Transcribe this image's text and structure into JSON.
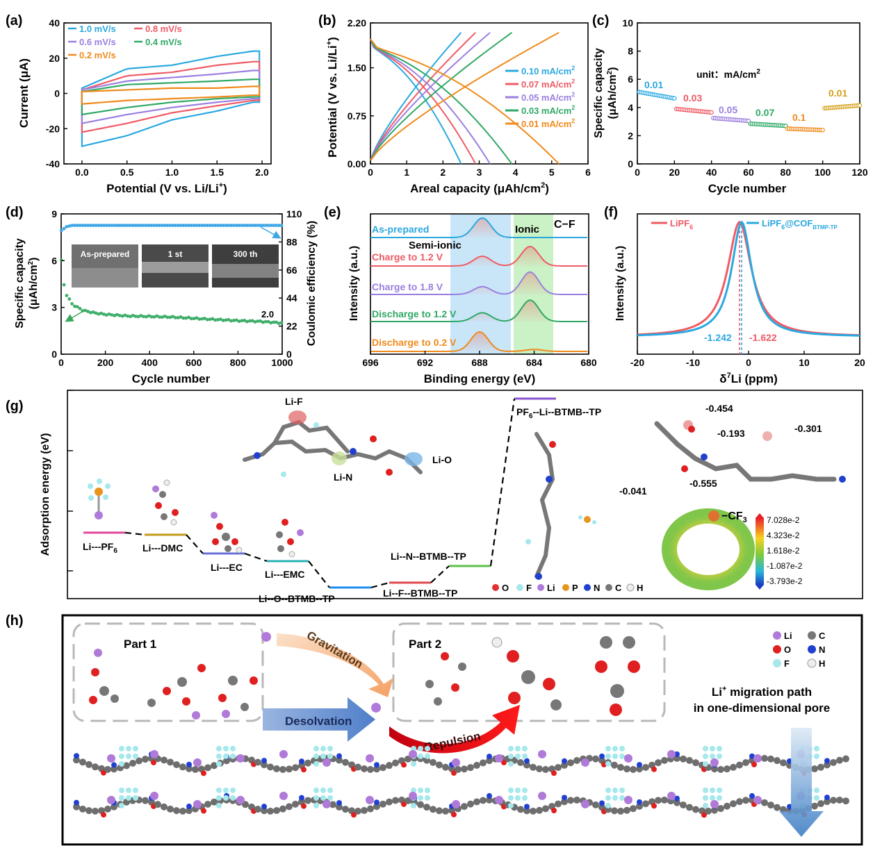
{
  "panels": {
    "a": {
      "label": "(a)",
      "xlabel": "Potential (V vs. Li/Li",
      "xlabel_sup": "+",
      "xlabel_end": ")",
      "ylabel": "Current (μA)",
      "legend": [
        "1.0 mV/s",
        "0.8 mV/s",
        "0.6 mV/s",
        "0.4 mV/s",
        "0.2 mV/s"
      ],
      "xticks": [
        "0.0",
        "0.5",
        "1.0",
        "1.5",
        "2.0"
      ],
      "yticks": [
        "40",
        "20",
        "0",
        "-20",
        "-40"
      ]
    },
    "b": {
      "label": "(b)",
      "xlabel": "Areal capacity (μAh/cm",
      "xlabel_sup": "2",
      "xlabel_end": ")",
      "ylabel": "Potential (V vs. Li/Li",
      "ylabel_sup": "+",
      "ylabel_end": ")",
      "legend": [
        "0.10 mA/cm",
        "0.07 mA/cm",
        "0.05 mA/cm",
        "0.03 mA/cm",
        "0.01 mA/cm"
      ],
      "legend_sup": "2",
      "xticks": [
        "0",
        "1",
        "2",
        "3",
        "4",
        "5",
        "6"
      ],
      "yticks": [
        "2.20",
        "1.50",
        "0.75",
        "0.00"
      ]
    },
    "c": {
      "label": "(c)",
      "xlabel": "Cycle number",
      "ylabel": "Specific capacity",
      "ylabel2": "(μAh/cm",
      "ylabel2_sup": "2",
      "ylabel2_end": ")",
      "unit": "unit：mA/cm",
      "unit_sup": "2",
      "rate_labels": [
        "0.01",
        "0.03",
        "0.05",
        "0.07",
        "0.1",
        "0.01"
      ],
      "xticks": [
        "0",
        "20",
        "40",
        "60",
        "80",
        "100",
        "120"
      ],
      "yticks": [
        "10",
        "8",
        "6",
        "4",
        "2",
        "0"
      ]
    },
    "d": {
      "label": "(d)",
      "xlabel": "Cycle number",
      "ylabel": "Specific capacity",
      "ylabel2": "(μAh/cm",
      "ylabel2_sup": "2",
      "ylabel2_end": ")",
      "ylabel_right": "Coulomic efficiency (%)",
      "insets": [
        "As-prepared",
        "1 st",
        "300 th"
      ],
      "end_label": "2.0",
      "xticks": [
        "0",
        "200",
        "400",
        "600",
        "800",
        "1000"
      ],
      "yticks": [
        "9",
        "6",
        "3",
        "0"
      ],
      "yticks_right": [
        "110",
        "88",
        "66",
        "44",
        "22",
        "0"
      ]
    },
    "e": {
      "label": "(e)",
      "xlabel": "Binding energy (eV)",
      "ylabel": "Intensity (a.u.)",
      "regions": [
        "Semi-ionic",
        "Ionic",
        "C−F"
      ],
      "spectra": [
        "As-prepared",
        "Charge to 1.2 V",
        "Charge to 1.8 V",
        "Discharge to 1.2 V",
        "Discharge to 0.2 V"
      ],
      "xticks": [
        "696",
        "692",
        "688",
        "684",
        "680"
      ]
    },
    "f": {
      "label": "(f)",
      "xlabel": "δ",
      "xlabel_sup": "7",
      "xlabel_end": "Li (ppm)",
      "ylabel": "Intensity (a.u.)",
      "legend1": "LiPF",
      "legend1_sub": "6",
      "legend2": "LiPF",
      "legend2_sub": "6",
      "legend2_end": "@COF",
      "legend2_sub2": "BTMP-TP",
      "peak1": "-1.242",
      "peak2": "-1.622",
      "xticks": [
        "-20",
        "-10",
        "0",
        "10",
        "20"
      ]
    },
    "g": {
      "label": "(g)",
      "ylabel": "Adsorption energy (eV)",
      "levels": [
        "Li---PF",
        "Li---DMC",
        "Li---EC",
        "Li---EMC",
        "Li--O--BTMB--TP",
        "Li--F--BTMB--TP",
        "Li--N--BTMB--TP",
        "PF"
      ],
      "level_sub": "6",
      "level_pf_end": "--Li--BTMB--TP",
      "bond_labels": [
        "Li-F",
        "Li-N",
        "Li-O"
      ],
      "charges": [
        "-0.454",
        "-0.193",
        "-0.301",
        "-0.041",
        "-0.555"
      ],
      "cf3": "−CF",
      "cf3_sub": "3",
      "colorbar": [
        "7.028e-2",
        "4.323e-2",
        "1.618e-2",
        "-1.087e-2",
        "-3.793e-2"
      ],
      "atoms": [
        "O",
        "F",
        "Li",
        "P",
        "N",
        "C",
        "H"
      ]
    },
    "h": {
      "label": "(h)",
      "part1": "Part 1",
      "part2": "Part 2",
      "arrows": [
        "Gravitation",
        "Desolvation",
        "Repulsion"
      ],
      "migration1": "Li",
      "migration_sup": "+",
      "migration1_end": " migration path",
      "migration2": "in one-dimensional pore",
      "atoms": [
        "Li",
        "C",
        "O",
        "N",
        "F",
        "H"
      ]
    }
  },
  "colors": {
    "c1": "#29a8e0",
    "c2": "#ef5a64",
    "c3": "#9b7fe0",
    "c4": "#2fa865",
    "c5": "#f08a1a",
    "c_green": "#3aa85a",
    "c_blue": "#3fa7e6"
  },
  "chart_data": [
    {
      "panel": "a",
      "type": "line",
      "xlabel": "Potential (V vs. Li/Li+)",
      "ylabel": "Current (μA)",
      "xlim": [
        -0.2,
        2.1
      ],
      "ylim": [
        -40,
        40
      ],
      "series": [
        {
          "name": "1.0 mV/s",
          "x": [
            0,
            0.5,
            1.0,
            1.5,
            1.9
          ],
          "y_anodic": [
            3,
            14,
            16,
            21,
            24
          ],
          "y_cathodic": [
            -30,
            -24,
            -15,
            -10,
            -5
          ]
        },
        {
          "name": "0.8 mV/s",
          "x": [
            0,
            0.5,
            1.0,
            1.5,
            1.9
          ],
          "y_anodic": [
            2,
            10,
            12,
            16,
            18
          ],
          "y_cathodic": [
            -22,
            -17,
            -11,
            -7,
            -4
          ]
        },
        {
          "name": "0.6 mV/s",
          "x": [
            0,
            0.5,
            1.0,
            1.5,
            1.9
          ],
          "y_anodic": [
            2,
            7,
            9,
            11,
            13
          ],
          "y_cathodic": [
            -17,
            -12,
            -8,
            -5,
            -3
          ]
        },
        {
          "name": "0.4 mV/s",
          "x": [
            0,
            0.5,
            1.0,
            1.5,
            1.9
          ],
          "y_anodic": [
            1,
            5,
            6,
            7,
            8
          ],
          "y_cathodic": [
            -12,
            -8,
            -5,
            -3,
            -2
          ]
        },
        {
          "name": "0.2 mV/s",
          "x": [
            0,
            0.5,
            1.0,
            1.5,
            1.9
          ],
          "y_anodic": [
            1,
            2,
            3,
            3,
            4
          ],
          "y_cathodic": [
            -6,
            -4,
            -3,
            -2,
            -1
          ]
        }
      ]
    },
    {
      "panel": "b",
      "type": "line",
      "xlabel": "Areal capacity (μAh/cm2)",
      "ylabel": "Potential (V vs. Li/Li+)",
      "xlim": [
        0,
        6
      ],
      "ylim": [
        0,
        2.2
      ],
      "series": [
        {
          "name": "0.10 mA/cm2",
          "capacity": 2.5
        },
        {
          "name": "0.07 mA/cm2",
          "capacity": 2.9
        },
        {
          "name": "0.05 mA/cm2",
          "capacity": 3.3
        },
        {
          "name": "0.03 mA/cm2",
          "capacity": 3.9
        },
        {
          "name": "0.01 mA/cm2",
          "capacity": 5.2
        }
      ]
    },
    {
      "panel": "c",
      "type": "scatter",
      "xlabel": "Cycle number",
      "ylabel": "Specific capacity (μAh/cm2)",
      "xlim": [
        0,
        120
      ],
      "ylim": [
        0,
        10
      ],
      "segments": [
        {
          "rate": "0.01",
          "cycles": [
            1,
            20
          ],
          "y": [
            5.1,
            4.65
          ]
        },
        {
          "rate": "0.03",
          "cycles": [
            21,
            40
          ],
          "y": [
            3.9,
            3.65
          ]
        },
        {
          "rate": "0.05",
          "cycles": [
            41,
            60
          ],
          "y": [
            3.25,
            3.05
          ]
        },
        {
          "rate": "0.07",
          "cycles": [
            61,
            80
          ],
          "y": [
            2.85,
            2.7
          ]
        },
        {
          "rate": "0.1",
          "cycles": [
            81,
            100
          ],
          "y": [
            2.5,
            2.4
          ]
        },
        {
          "rate": "0.01",
          "cycles": [
            101,
            120
          ],
          "y": [
            3.95,
            4.15
          ]
        }
      ]
    },
    {
      "panel": "d",
      "type": "scatter",
      "xlabel": "Cycle number",
      "ylabel": "Specific capacity (μAh/cm2)",
      "xlim": [
        0,
        1000
      ],
      "ylim": [
        0,
        9
      ],
      "y2lim": [
        0,
        110
      ],
      "capacity": {
        "x": [
          1,
          10,
          25,
          50,
          100,
          150,
          200,
          300,
          400,
          500,
          600,
          700,
          800,
          900,
          1000
        ],
        "y": [
          6.0,
          4.6,
          3.8,
          3.2,
          2.8,
          2.65,
          2.55,
          2.45,
          2.42,
          2.38,
          2.3,
          2.22,
          2.15,
          2.1,
          2.0
        ]
      },
      "efficiency": {
        "x": [
          1,
          25,
          50,
          100,
          200,
          400,
          600,
          800,
          1000
        ],
        "y": [
          97,
          100,
          101,
          101,
          101,
          101,
          101,
          101,
          101
        ]
      }
    },
    {
      "panel": "e",
      "type": "line",
      "xlabel": "Binding energy (eV)",
      "ylabel": "Intensity (a.u.)",
      "xlim": [
        696,
        680
      ],
      "series": [
        {
          "name": "As-prepared",
          "peaks": [
            [
              687.8,
              1.0
            ]
          ]
        },
        {
          "name": "Charge to 1.2 V",
          "peaks": [
            [
              687.8,
              0.5
            ],
            [
              684.3,
              1.0
            ]
          ]
        },
        {
          "name": "Charge to 1.8 V",
          "peaks": [
            [
              687.8,
              0.4
            ],
            [
              684.3,
              1.15
            ]
          ]
        },
        {
          "name": "Discharge to 1.2 V",
          "peaks": [
            [
              687.8,
              0.45
            ],
            [
              684.3,
              1.1
            ]
          ]
        },
        {
          "name": "Discharge to 0.2 V",
          "peaks": [
            [
              688.0,
              1.0
            ],
            [
              684.0,
              0.1
            ]
          ]
        }
      ]
    },
    {
      "panel": "f",
      "type": "line",
      "xlabel": "δ7Li (ppm)",
      "ylabel": "Intensity (a.u.)",
      "xlim": [
        -20,
        20
      ],
      "series": [
        {
          "name": "LiPF6",
          "center": -1.622,
          "width": 2.6
        },
        {
          "name": "LiPF6@COFBTMP-TP",
          "center": -1.242,
          "width": 2.2
        }
      ]
    }
  ]
}
